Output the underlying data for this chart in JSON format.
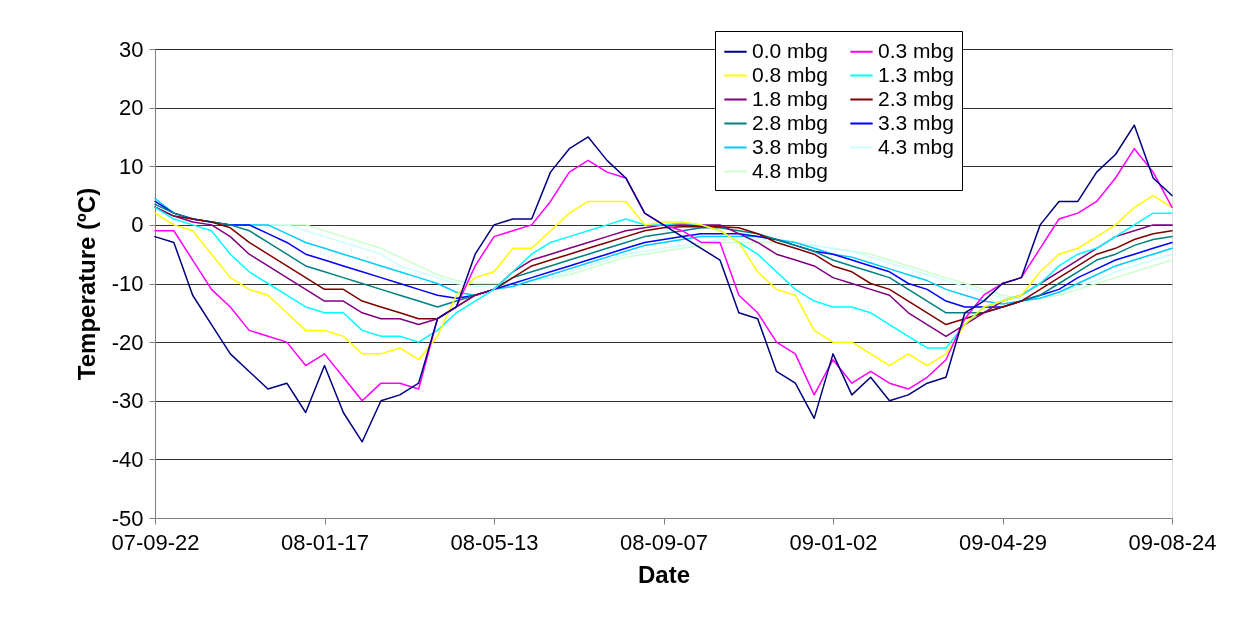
{
  "chart_data": {
    "type": "line",
    "xlabel": "Date",
    "ylabel": "Temperature (ºC)",
    "x": [
      "2007-09-22",
      "2007-10-05",
      "2007-10-18",
      "2007-10-31",
      "2007-11-13",
      "2007-11-26",
      "2007-12-09",
      "2007-12-22",
      "2008-01-04",
      "2008-01-17",
      "2008-01-30",
      "2008-02-12",
      "2008-02-25",
      "2008-03-09",
      "2008-03-22",
      "2008-04-04",
      "2008-04-17",
      "2008-04-30",
      "2008-05-13",
      "2008-05-26",
      "2008-06-08",
      "2008-06-21",
      "2008-07-04",
      "2008-07-17",
      "2008-07-30",
      "2008-08-12",
      "2008-08-25",
      "2008-09-07",
      "2008-09-20",
      "2008-10-03",
      "2008-10-16",
      "2008-10-29",
      "2008-11-11",
      "2008-11-24",
      "2008-12-07",
      "2008-12-20",
      "2009-01-02",
      "2009-01-15",
      "2009-01-28",
      "2009-02-10",
      "2009-02-23",
      "2009-03-08",
      "2009-03-21",
      "2009-04-03",
      "2009-04-16",
      "2009-04-29",
      "2009-05-12",
      "2009-05-25",
      "2009-06-07",
      "2009-06-20",
      "2009-07-03",
      "2009-07-16",
      "2009-07-29",
      "2009-08-11",
      "2009-08-24"
    ],
    "series": [
      {
        "name": "0.0 mbg",
        "color": "#000080",
        "values": [
          -2,
          -3,
          -12,
          -17,
          -22,
          -25,
          -28,
          -27,
          -32,
          -24,
          -32,
          -37,
          -30,
          -29,
          -27,
          -16,
          -14,
          -5,
          0,
          1,
          1,
          9,
          13,
          15,
          11,
          8,
          2,
          0,
          -2,
          -4,
          -6,
          -15,
          -16,
          -25,
          -27,
          -33,
          -22,
          -29,
          -26,
          -30,
          -29,
          -27,
          -26,
          -15,
          -13,
          -10,
          -9,
          0,
          4,
          4,
          9,
          12,
          17,
          8,
          5
        ]
      },
      {
        "name": "0.3 mbg",
        "color": "#ff00ff",
        "values": [
          -1,
          -1,
          -6,
          -11,
          -14,
          -18,
          -19,
          -20,
          -24,
          -22,
          -26,
          -30,
          -27,
          -27,
          -28,
          -16,
          -14,
          -7,
          -2,
          -1,
          0,
          4,
          9,
          11,
          9,
          8,
          2,
          0,
          -1,
          -3,
          -3,
          -12,
          -15,
          -20,
          -22,
          -29,
          -23,
          -27,
          -25,
          -27,
          -28,
          -26,
          -23,
          -16,
          -12,
          -10,
          -9,
          -4,
          1,
          2,
          4,
          8,
          13,
          9,
          3
        ]
      },
      {
        "name": "0.8 mbg",
        "color": "#ffff00",
        "values": [
          2,
          0,
          -1,
          -5,
          -9,
          -11,
          -12,
          -15,
          -18,
          -18,
          -19,
          -22,
          -22,
          -21,
          -23,
          -19,
          -12,
          -9,
          -8,
          -4,
          -4,
          -1,
          2,
          4,
          4,
          4,
          0,
          0.5,
          0.5,
          0,
          -1,
          -3,
          -8,
          -11,
          -12,
          -18,
          -20,
          -20,
          -22,
          -24,
          -22,
          -24,
          -22,
          -17,
          -14,
          -13,
          -12,
          -8,
          -5,
          -4,
          -2,
          0,
          3,
          5,
          3
        ]
      },
      {
        "name": "1.3 mbg",
        "color": "#00ffff",
        "values": [
          3,
          1,
          0,
          -1,
          -5,
          -8,
          -10,
          -12,
          -14,
          -15,
          -15,
          -18,
          -19,
          -19,
          -20,
          -18,
          -15,
          -13,
          -11,
          -8,
          -5,
          -3,
          -2,
          -1,
          0,
          1,
          0,
          0,
          0.3,
          0,
          -1,
          -3,
          -5,
          -8,
          -11,
          -13,
          -14,
          -14,
          -15,
          -17,
          -19,
          -21,
          -21,
          -17,
          -14,
          -13,
          -12,
          -10,
          -7,
          -5,
          -4,
          -2,
          0,
          2,
          2
        ]
      },
      {
        "name": "1.8 mbg",
        "color": "#800080",
        "values": [
          3,
          1.5,
          0.5,
          0,
          -2,
          -5,
          -7,
          -9,
          -11,
          -13,
          -13,
          -15,
          -16,
          -16,
          -17,
          -16,
          -14,
          -12,
          -11,
          -8,
          -6,
          -5,
          -4,
          -3,
          -2,
          -1,
          -0.5,
          0,
          0,
          0,
          0,
          -1.5,
          -3,
          -5,
          -6,
          -7,
          -9,
          -10,
          -11,
          -12,
          -15,
          -17,
          -19,
          -17,
          -15,
          -13,
          -12,
          -10,
          -8,
          -6,
          -4,
          -2,
          -1,
          0,
          0
        ]
      },
      {
        "name": "2.3 mbg",
        "color": "#800000",
        "values": [
          3,
          1.5,
          1,
          0.5,
          -0.5,
          -3,
          -5,
          -7,
          -9,
          -11,
          -11,
          -13,
          -14,
          -15,
          -16,
          -16,
          -14,
          -12,
          -11,
          -9,
          -7,
          -6,
          -5,
          -4,
          -3,
          -2,
          -1,
          -0.5,
          -0.3,
          -0.3,
          -0.3,
          -0.5,
          -1.5,
          -3,
          -4,
          -5,
          -7,
          -8,
          -10,
          -11,
          -13,
          -15,
          -17,
          -16,
          -15,
          -14,
          -13,
          -11,
          -9,
          -7,
          -5,
          -4,
          -2.5,
          -1.5,
          -1
        ]
      },
      {
        "name": "2.8 mbg",
        "color": "#008080",
        "values": [
          3.5,
          2,
          1,
          0.5,
          0,
          -1,
          -3,
          -5,
          -7,
          -8,
          -9,
          -10,
          -11,
          -12,
          -13,
          -14,
          -13,
          -12,
          -11,
          -9,
          -8,
          -7,
          -6,
          -5,
          -4,
          -3,
          -2,
          -1.5,
          -1,
          -0.5,
          -0.5,
          -1,
          -1.5,
          -2.5,
          -3.5,
          -4.5,
          -6,
          -7,
          -8,
          -9,
          -11,
          -13,
          -15,
          -15,
          -15,
          -14,
          -13,
          -12,
          -10,
          -8,
          -6,
          -5,
          -3.5,
          -2.5,
          -2
        ]
      },
      {
        "name": "3.3 mbg",
        "color": "#0000ff",
        "values": [
          4,
          2,
          1,
          0.5,
          0,
          0,
          -1.5,
          -3,
          -5,
          -6,
          -7,
          -8,
          -9,
          -10,
          -11,
          -12,
          -12.5,
          -12,
          -11,
          -10,
          -9,
          -8,
          -7,
          -6,
          -5,
          -4,
          -3,
          -2.5,
          -2,
          -1.5,
          -1.5,
          -1.5,
          -2,
          -2.5,
          -3.5,
          -4.5,
          -5,
          -6,
          -7,
          -8,
          -10,
          -11,
          -13,
          -14,
          -14,
          -14,
          -13,
          -12,
          -11,
          -9,
          -7.5,
          -6,
          -5,
          -4,
          -3
        ]
      },
      {
        "name": "3.8 mbg",
        "color": "#00ccff",
        "values": [
          4.5,
          2,
          1,
          0.5,
          0,
          0,
          0,
          -1.5,
          -3,
          -4,
          -5,
          -6,
          -7,
          -8,
          -9,
          -10,
          -11.5,
          -12,
          -11,
          -10.5,
          -9.5,
          -8.5,
          -7.5,
          -6.5,
          -5.5,
          -4.5,
          -3.5,
          -3,
          -2.5,
          -2,
          -2,
          -2,
          -2,
          -2.5,
          -3,
          -4,
          -5,
          -5.5,
          -6.5,
          -7.5,
          -8.5,
          -9.5,
          -11,
          -12,
          -13,
          -13.5,
          -13,
          -12.5,
          -11.5,
          -10,
          -8.5,
          -7,
          -6,
          -5,
          -4
        ]
      },
      {
        "name": "4.3 mbg",
        "color": "#ccffff",
        "values": [
          4,
          2,
          1,
          0.5,
          0,
          0,
          0,
          0,
          -1,
          -2,
          -3,
          -4,
          -5,
          -7,
          -8,
          -9,
          -10,
          -10.5,
          -10.5,
          -10,
          -9.5,
          -9,
          -8,
          -7,
          -6,
          -5,
          -4.5,
          -4,
          -3.5,
          -3,
          -2.5,
          -2.5,
          -2.5,
          -2.5,
          -3,
          -3.5,
          -4,
          -4.5,
          -5.5,
          -6.5,
          -7.5,
          -8.5,
          -9.5,
          -10.5,
          -11.5,
          -12.5,
          -12.5,
          -12,
          -11.5,
          -10.5,
          -9.5,
          -8,
          -7,
          -6,
          -5
        ]
      },
      {
        "name": "4.8 mbg",
        "color": "#ccffcc",
        "values": [
          4,
          2,
          1,
          0.5,
          0,
          0,
          0,
          0,
          0,
          -1,
          -2,
          -3,
          -4,
          -5.5,
          -7,
          -8.5,
          -9.5,
          -10,
          -10,
          -10,
          -9.5,
          -9,
          -8.5,
          -7.5,
          -6.5,
          -5.5,
          -5,
          -4.5,
          -4,
          -3.5,
          -3,
          -3,
          -3,
          -3,
          -3,
          -3.5,
          -4,
          -4.5,
          -5,
          -6,
          -7,
          -8,
          -9,
          -10,
          -11,
          -12,
          -12.5,
          -12.5,
          -12,
          -11,
          -10,
          -9,
          -8,
          -7,
          -6
        ]
      }
    ],
    "xlim": [
      "2007-09-22",
      "2009-08-24"
    ],
    "xticks": [
      {
        "value": "2007-09-22",
        "label": "07-09-22"
      },
      {
        "value": "2008-01-17",
        "label": "08-01-17"
      },
      {
        "value": "2008-05-13",
        "label": "08-05-13"
      },
      {
        "value": "2008-09-07",
        "label": "08-09-07"
      },
      {
        "value": "2009-01-02",
        "label": "09-01-02"
      },
      {
        "value": "2009-04-29",
        "label": "09-04-29"
      },
      {
        "value": "2009-08-24",
        "label": "09-08-24"
      }
    ],
    "ylim": [
      -50,
      30
    ],
    "yticks": [
      -50,
      -40,
      -30,
      -20,
      -10,
      0,
      10,
      20,
      30
    ],
    "grid": "y",
    "legend": "top right",
    "line_style": "solid"
  }
}
